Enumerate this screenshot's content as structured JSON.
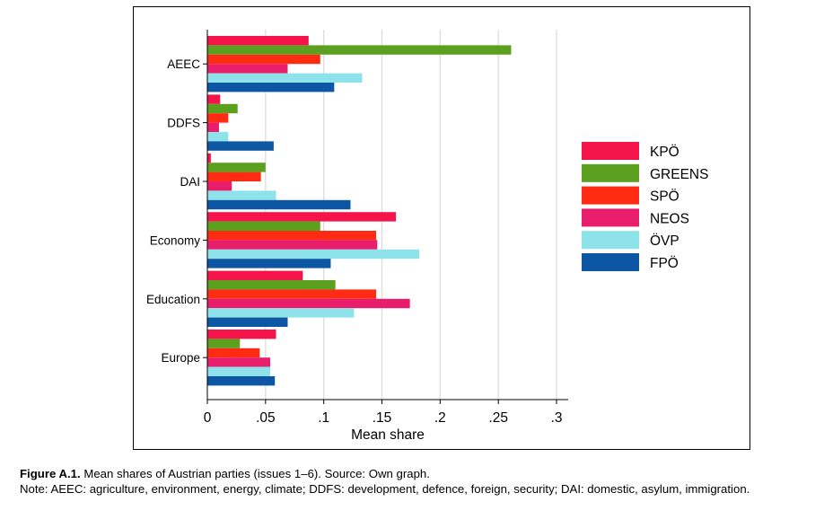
{
  "chart_data": {
    "type": "bar",
    "orientation": "horizontal",
    "categories": [
      "AEEC",
      "DDFS",
      "DAI",
      "Economy",
      "Education",
      "Europe"
    ],
    "series": [
      {
        "name": "KPÖ",
        "color": "#F5144A",
        "values": [
          0.087,
          0.011,
          0.003,
          0.162,
          0.082,
          0.059
        ]
      },
      {
        "name": "GREENS",
        "color": "#5BA01E",
        "values": [
          0.261,
          0.026,
          0.05,
          0.097,
          0.11,
          0.028
        ]
      },
      {
        "name": "SPÖ",
        "color": "#FF2B12",
        "values": [
          0.097,
          0.018,
          0.046,
          0.145,
          0.145,
          0.045
        ]
      },
      {
        "name": "NEOS",
        "color": "#E81E6C",
        "values": [
          0.069,
          0.01,
          0.021,
          0.146,
          0.174,
          0.054
        ]
      },
      {
        "name": "ÖVP",
        "color": "#8EE2EA",
        "values": [
          0.133,
          0.018,
          0.059,
          0.182,
          0.126,
          0.054
        ]
      },
      {
        "name": "FPÖ",
        "color": "#0C56A3",
        "values": [
          0.109,
          0.057,
          0.123,
          0.106,
          0.069,
          0.058
        ]
      }
    ],
    "xlabel": "Mean share",
    "ylabel": "",
    "xlim": [
      0,
      0.31
    ],
    "xticks": [
      0,
      0.05,
      0.1,
      0.15,
      0.2,
      0.25,
      0.3
    ],
    "xtick_labels": [
      "0",
      ".05",
      ".1",
      ".15",
      ".2",
      ".25",
      ".3"
    ],
    "grid": true,
    "legend_position": "right"
  },
  "caption": {
    "figure_label": "Figure A.1.",
    "title": "Mean shares of Austrian parties (issues 1–6). Source: Own graph.",
    "note": "Note: AEEC: agriculture, environment, energy, climate; DDFS: development, defence, foreign, security; DAI: domestic, asylum, immigration."
  }
}
